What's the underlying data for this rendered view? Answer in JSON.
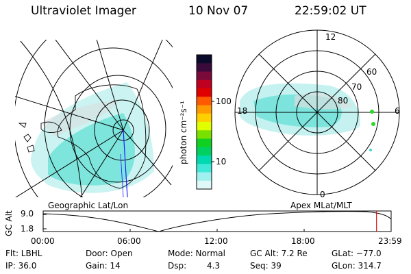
{
  "header": {
    "instrument": "Ultraviolet Imager",
    "date": "10 Nov 07",
    "time": "22:59:02 UT"
  },
  "geo_map": {
    "label": "Geographic Lat/Lon"
  },
  "colorbar": {
    "unit_label": "photon cm⁻²s⁻¹",
    "ticks": [
      "100",
      "10"
    ],
    "colors": [
      "#0a0a2a",
      "#3a0a3a",
      "#7a0a3a",
      "#c00020",
      "#e00000",
      "#ff5a00",
      "#ff9a00",
      "#ffd000",
      "#e0ff00",
      "#7ae000",
      "#10d020",
      "#00d060",
      "#00d8b0",
      "#40e8d8",
      "#a0f0f0",
      "#e0f8f8"
    ]
  },
  "polar_plot": {
    "label": "Apex MLat/MLT",
    "lat_labels": [
      "80",
      "70",
      "60"
    ],
    "mlt_labels": {
      "top": "12",
      "left": "18",
      "right": "6",
      "bottom": "0"
    }
  },
  "altitude_plot": {
    "axis_label": "GC Alt",
    "y_ticks": [
      "9.0",
      "1.8"
    ],
    "x_ticks": [
      "00:00",
      "06:00",
      "12:00",
      "18:00",
      "23:59"
    ],
    "current_time_fraction": 0.958
  },
  "footer": {
    "filter": "Flt: LBHL",
    "ip": "IP: 36.0",
    "door": "Door: Open",
    "gain": "Gain: 14",
    "mode": "Mode: Normal",
    "dsp_label": "Dsp:",
    "dsp_value": "4.3",
    "gc_alt": "GC Alt: 7.2 Re",
    "seq": "Seq: 39",
    "glat": "GLat: −77.0",
    "glon": "GLon: 314.7"
  }
}
